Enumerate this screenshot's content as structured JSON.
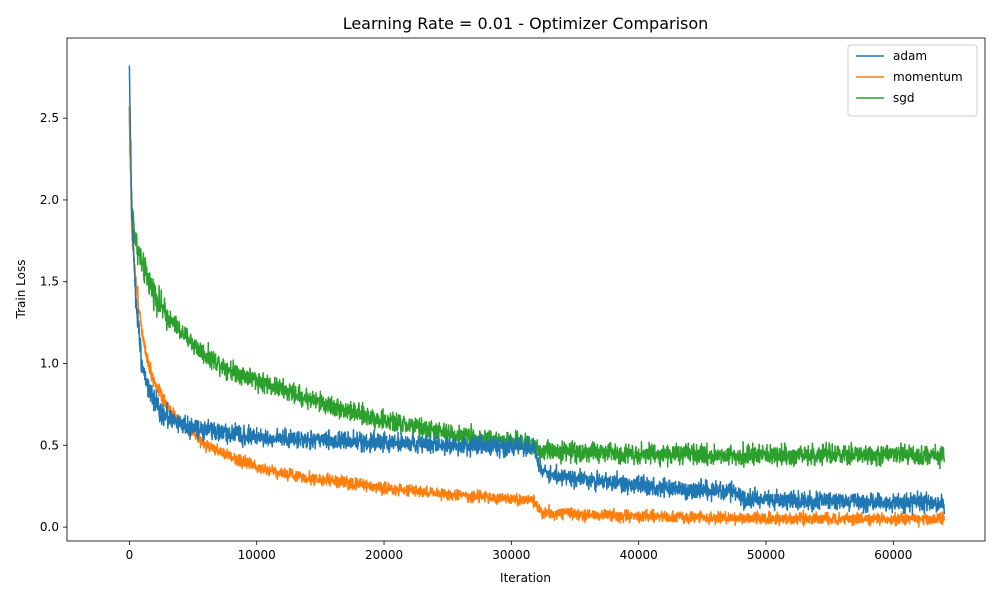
{
  "chart_data": {
    "type": "line",
    "title": "Learning Rate = 0.01 - Optimizer Comparison",
    "xlabel": "Iteration",
    "ylabel": "Train Loss",
    "xlim": [
      -4900,
      67200
    ],
    "ylim": [
      -0.085,
      2.99
    ],
    "xticks": [
      0,
      10000,
      20000,
      30000,
      40000,
      50000,
      60000
    ],
    "yticks": [
      0.0,
      0.5,
      1.0,
      1.5,
      2.0,
      2.5
    ],
    "xtick_labels": [
      "0",
      "10000",
      "20000",
      "30000",
      "40000",
      "50000",
      "60000"
    ],
    "ytick_labels": [
      "0.0",
      "0.5",
      "1.0",
      "1.5",
      "2.0",
      "2.5"
    ],
    "grid": false,
    "legend": "top-right",
    "series": [
      {
        "name": "adam",
        "color": "#1f77b4",
        "points": [
          [
            0,
            2.84
          ],
          [
            50,
            2.5
          ],
          [
            200,
            1.9
          ],
          [
            500,
            1.4
          ],
          [
            1000,
            1.0
          ],
          [
            1500,
            0.85
          ],
          [
            2000,
            0.75
          ],
          [
            3000,
            0.67
          ],
          [
            4000,
            0.63
          ],
          [
            5000,
            0.6
          ],
          [
            7000,
            0.58
          ],
          [
            10000,
            0.55
          ],
          [
            15000,
            0.53
          ],
          [
            20000,
            0.52
          ],
          [
            25000,
            0.5
          ],
          [
            30000,
            0.49
          ],
          [
            31800,
            0.49
          ],
          [
            32200,
            0.37
          ],
          [
            33000,
            0.32
          ],
          [
            35000,
            0.3
          ],
          [
            38000,
            0.27
          ],
          [
            40000,
            0.25
          ],
          [
            44000,
            0.23
          ],
          [
            47800,
            0.21
          ],
          [
            48200,
            0.18
          ],
          [
            50000,
            0.17
          ],
          [
            55000,
            0.16
          ],
          [
            60000,
            0.15
          ],
          [
            64000,
            0.15
          ]
        ],
        "noise": 0.028
      },
      {
        "name": "momentum",
        "color": "#ff7f0e",
        "points": [
          [
            0,
            2.58
          ],
          [
            50,
            2.3
          ],
          [
            200,
            1.8
          ],
          [
            500,
            1.5
          ],
          [
            1000,
            1.2
          ],
          [
            1500,
            1.0
          ],
          [
            2000,
            0.88
          ],
          [
            3000,
            0.74
          ],
          [
            4000,
            0.64
          ],
          [
            5000,
            0.57
          ],
          [
            6000,
            0.5
          ],
          [
            8000,
            0.43
          ],
          [
            10000,
            0.37
          ],
          [
            12000,
            0.33
          ],
          [
            15000,
            0.29
          ],
          [
            20000,
            0.24
          ],
          [
            25000,
            0.2
          ],
          [
            30000,
            0.17
          ],
          [
            31800,
            0.16
          ],
          [
            32300,
            0.09
          ],
          [
            35000,
            0.08
          ],
          [
            40000,
            0.065
          ],
          [
            45000,
            0.06
          ],
          [
            48000,
            0.055
          ],
          [
            50000,
            0.05
          ],
          [
            55000,
            0.05
          ],
          [
            60000,
            0.05
          ],
          [
            64000,
            0.05
          ]
        ],
        "noise": 0.018
      },
      {
        "name": "sgd",
        "color": "#2ca02c",
        "points": [
          [
            0,
            2.55
          ],
          [
            50,
            2.3
          ],
          [
            200,
            1.95
          ],
          [
            500,
            1.75
          ],
          [
            1000,
            1.6
          ],
          [
            2000,
            1.42
          ],
          [
            3000,
            1.28
          ],
          [
            4000,
            1.2
          ],
          [
            5000,
            1.12
          ],
          [
            6000,
            1.05
          ],
          [
            8000,
            0.96
          ],
          [
            10000,
            0.9
          ],
          [
            12000,
            0.84
          ],
          [
            15000,
            0.76
          ],
          [
            18000,
            0.69
          ],
          [
            20000,
            0.65
          ],
          [
            25000,
            0.57
          ],
          [
            28000,
            0.54
          ],
          [
            31800,
            0.5
          ],
          [
            32200,
            0.47
          ],
          [
            35000,
            0.46
          ],
          [
            40000,
            0.45
          ],
          [
            45000,
            0.44
          ],
          [
            50000,
            0.44
          ],
          [
            55000,
            0.44
          ],
          [
            60000,
            0.44
          ],
          [
            64000,
            0.44
          ]
        ],
        "noise": 0.03
      }
    ]
  }
}
